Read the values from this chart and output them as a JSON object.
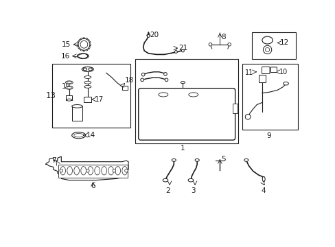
{
  "bg_color": "#ffffff",
  "line_color": "#1a1a1a",
  "figsize": [
    4.89,
    3.6
  ],
  "dpi": 100,
  "label_fontsize": 7.5
}
